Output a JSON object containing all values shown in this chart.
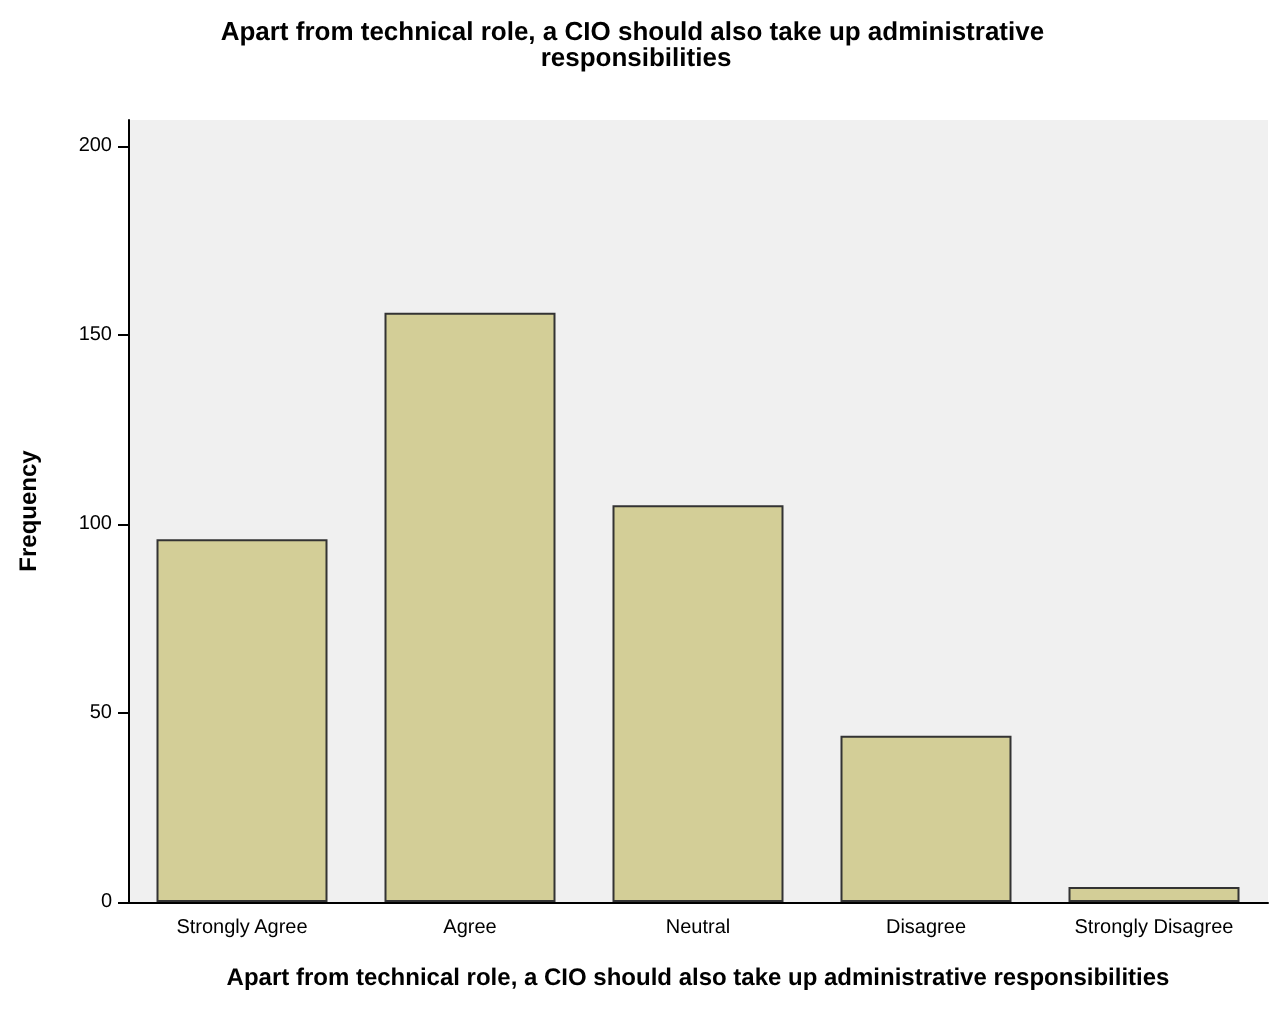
{
  "chart_data": {
    "type": "bar",
    "title": "Apart from technical role, a CIO should also take up administrative responsibilities",
    "xlabel": "Apart from technical role, a CIO should also take up administrative responsibilities",
    "ylabel": "Frequency",
    "categories": [
      "Strongly Agree",
      "Agree",
      "Neutral",
      "Disagree",
      "Strongly Disagree"
    ],
    "values": [
      96,
      156,
      105,
      44,
      4
    ],
    "color": "#d3ce97",
    "ylim": [
      0,
      207
    ],
    "yticks": [
      0,
      50,
      100,
      150,
      200
    ],
    "grid": false
  }
}
